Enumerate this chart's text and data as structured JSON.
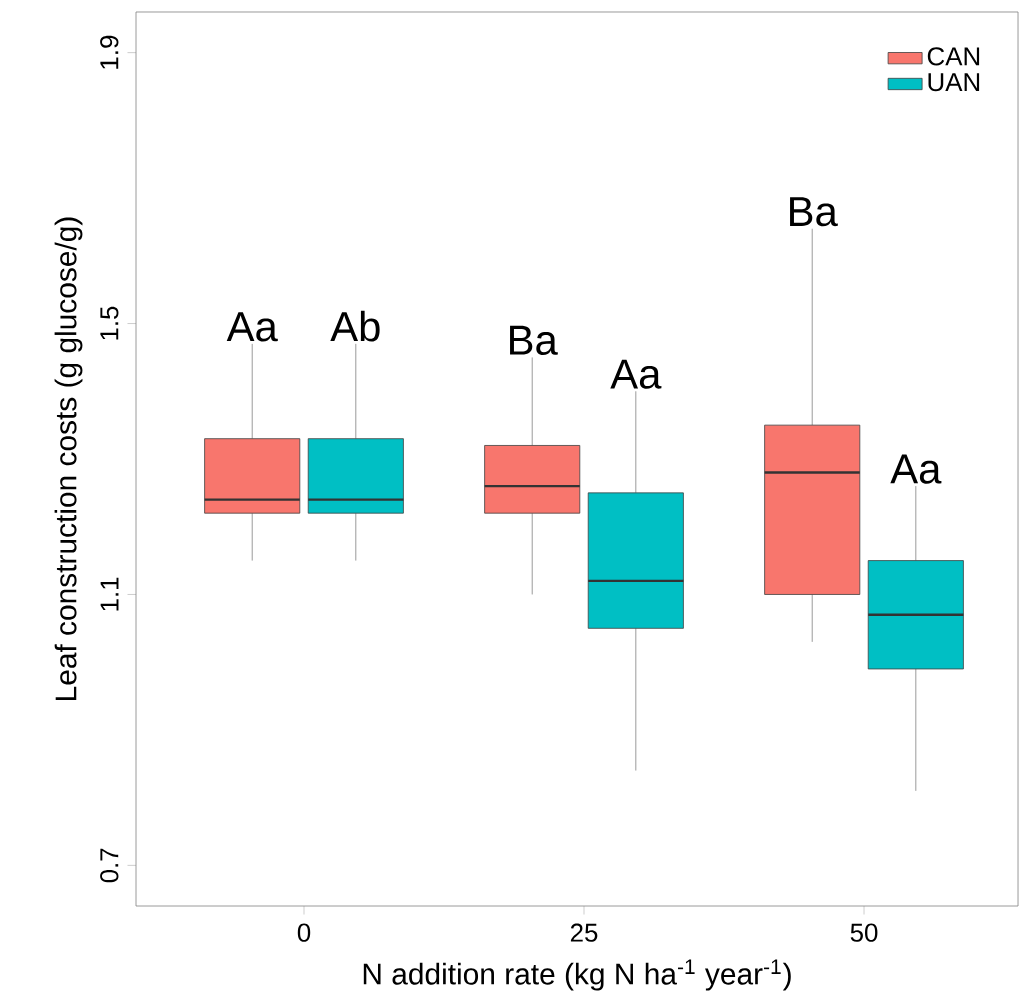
{
  "chart_data": {
    "type": "box",
    "xlabel": "N addition rate (kg N ha$^{-1}$ year$^{-1}$)",
    "ylabel": "Leaf construction costs (g glucose/g)",
    "categories": [
      "0",
      "25",
      "50"
    ],
    "series": [
      {
        "name": "CAN",
        "color": "#f8766d",
        "boxes": [
          {
            "low": 1.15,
            "q1": 1.22,
            "median": 1.24,
            "q3": 1.33,
            "high": 1.47
          },
          {
            "low": 1.1,
            "q1": 1.22,
            "median": 1.26,
            "q3": 1.32,
            "high": 1.45
          },
          {
            "low": 1.03,
            "q1": 1.1,
            "median": 1.28,
            "q3": 1.35,
            "high": 1.64
          }
        ]
      },
      {
        "name": "UAN",
        "color": "#00bfc4",
        "boxes": [
          {
            "low": 1.15,
            "q1": 1.22,
            "median": 1.24,
            "q3": 1.33,
            "high": 1.47
          },
          {
            "low": 0.84,
            "q1": 1.05,
            "median": 1.12,
            "q3": 1.25,
            "high": 1.4
          },
          {
            "low": 0.81,
            "q1": 0.99,
            "median": 1.07,
            "q3": 1.15,
            "high": 1.26
          }
        ]
      }
    ],
    "ylim": [
      0.64,
      1.96
    ],
    "yticks": [
      0.7,
      1.1,
      1.5,
      1.9
    ],
    "annotations": [
      "Aa",
      "Ab",
      "Ba",
      "Aa",
      "Ba",
      "Aa"
    ],
    "legend": "top right",
    "grid": false
  }
}
